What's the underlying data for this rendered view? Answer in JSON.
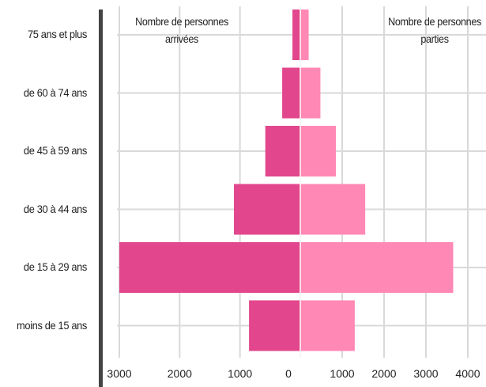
{
  "colors": {
    "arrivals": "#e2468c",
    "departures": "#ff88b4",
    "grid": "#d9d9d9",
    "axis_bar": "#444444"
  },
  "chart_data": {
    "type": "bar",
    "orientation": "horizontal-diverging",
    "categories": [
      "75 ans et plus",
      "de 60 à 74 ans",
      "de 45 à 59 ans",
      "de 30 à 44 ans",
      "de 15 à 29 ans",
      "moins de 15 ans"
    ],
    "series": [
      {
        "name": "Nombre de personnes arrivées",
        "side": "left",
        "values": [
          130,
          300,
          580,
          1100,
          3000,
          850
        ]
      },
      {
        "name": "Nombre de personnes parties",
        "side": "right",
        "values": [
          200,
          480,
          850,
          1550,
          3650,
          1300
        ]
      }
    ],
    "left_ticks": [
      "3000",
      "2000",
      "1000",
      "0"
    ],
    "right_ticks": [
      "1000",
      "2000",
      "3000",
      "4000"
    ],
    "xlim_left": [
      0,
      3000
    ],
    "xlim_right": [
      0,
      4000
    ],
    "grid": true,
    "legend": {
      "left_lines": [
        "Nombre de personnes",
        "arrivées"
      ],
      "right_lines": [
        "Nombre de personnes",
        "parties"
      ]
    }
  }
}
